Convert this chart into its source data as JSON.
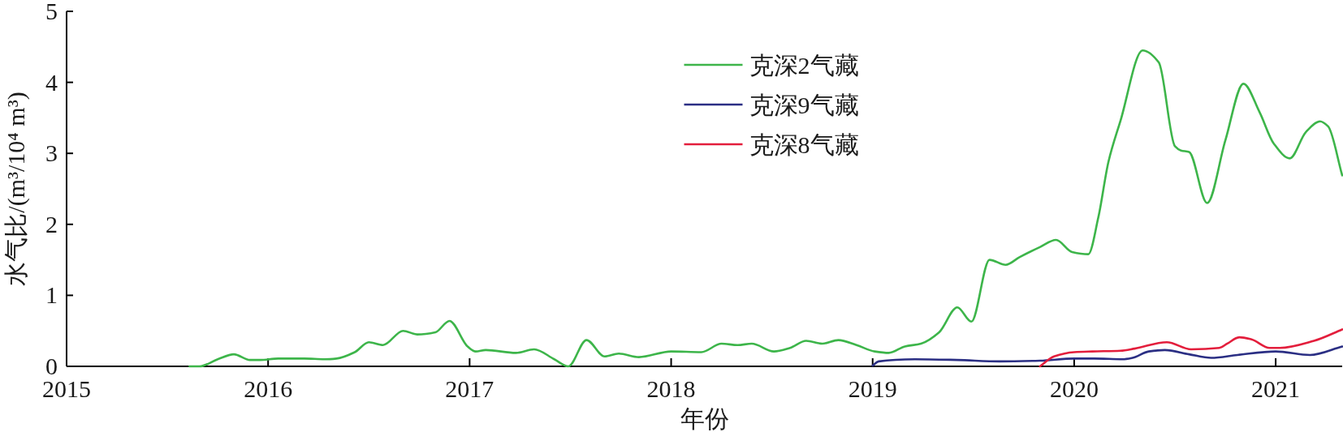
{
  "chart_data": {
    "type": "line",
    "xlabel": "年份",
    "ylabel": "水气比/(m³/10⁴ m³)",
    "xlim": [
      2015,
      2021.33
    ],
    "ylim": [
      0,
      5
    ],
    "xticks": [
      2015,
      2016,
      2017,
      2018,
      2019,
      2020,
      2021
    ],
    "yticks": [
      0,
      1,
      2,
      3,
      4,
      5
    ],
    "legend": "top",
    "series": [
      {
        "name": "克深2气藏",
        "color": "#3db54a",
        "x": [
          2015.61,
          2015.66,
          2015.75,
          2015.83,
          2015.91,
          2015.96,
          2016.05,
          2016.18,
          2016.28,
          2016.34,
          2016.43,
          2016.5,
          2016.57,
          2016.67,
          2016.74,
          2016.83,
          2016.9,
          2016.99,
          2017.03,
          2017.08,
          2017.23,
          2017.32,
          2017.42,
          2017.49,
          2017.58,
          2017.67,
          2017.74,
          2017.84,
          2018.0,
          2018.15,
          2018.25,
          2018.33,
          2018.4,
          2018.51,
          2018.59,
          2018.67,
          2018.75,
          2018.83,
          2018.92,
          2019.01,
          2019.08,
          2019.16,
          2019.24,
          2019.33,
          2019.42,
          2019.49,
          2019.58,
          2019.66,
          2019.73,
          2019.83,
          2019.91,
          2019.99,
          2020.07,
          2020.12,
          2020.17,
          2020.23,
          2020.34,
          2020.42,
          2020.5,
          2020.53,
          2020.57,
          2020.66,
          2020.75,
          2020.84,
          2020.92,
          2020.99,
          2021.07,
          2021.15,
          2021.22,
          2021.26,
          2021.33
        ],
        "values": [
          0,
          0,
          0.1,
          0.17,
          0.09,
          0.09,
          0.11,
          0.11,
          0.1,
          0.11,
          0.2,
          0.34,
          0.3,
          0.5,
          0.45,
          0.48,
          0.64,
          0.28,
          0.21,
          0.23,
          0.19,
          0.24,
          0.1,
          0,
          0.37,
          0.14,
          0.18,
          0.13,
          0.21,
          0.2,
          0.32,
          0.3,
          0.32,
          0.21,
          0.26,
          0.36,
          0.32,
          0.37,
          0.3,
          0.21,
          0.19,
          0.28,
          0.32,
          0.48,
          0.83,
          0.63,
          1.5,
          1.43,
          1.54,
          1.68,
          1.78,
          1.61,
          1.58,
          2.1,
          2.88,
          3.46,
          4.45,
          4.28,
          3.1,
          3.04,
          3.02,
          2.3,
          3.18,
          3.98,
          3.58,
          3.14,
          2.93,
          3.3,
          3.45,
          3.38,
          2.69
        ]
      },
      {
        "name": "克深9气藏",
        "color": "#2b2f84",
        "x": [
          2019.0,
          2019.03,
          2019.21,
          2019.42,
          2019.63,
          2019.83,
          2020.0,
          2020.1,
          2020.24,
          2020.29,
          2020.37,
          2020.45,
          2020.57,
          2020.68,
          2020.81,
          2021.0,
          2021.17,
          2021.33
        ],
        "values": [
          0.01,
          0.07,
          0.1,
          0.09,
          0.07,
          0.08,
          0.11,
          0.11,
          0.1,
          0.12,
          0.21,
          0.23,
          0.17,
          0.12,
          0.16,
          0.21,
          0.16,
          0.28
        ]
      },
      {
        "name": "克深8气藏",
        "color": "#e31e3c",
        "x": [
          2019.83,
          2019.9,
          2020.0,
          2020.09,
          2020.23,
          2020.3,
          2020.46,
          2020.58,
          2020.72,
          2020.76,
          2020.82,
          2020.88,
          2020.97,
          2021.02,
          2021.19,
          2021.33
        ],
        "values": [
          0,
          0.14,
          0.2,
          0.21,
          0.22,
          0.25,
          0.34,
          0.24,
          0.26,
          0.32,
          0.41,
          0.38,
          0.26,
          0.26,
          0.36,
          0.52
        ]
      }
    ]
  }
}
